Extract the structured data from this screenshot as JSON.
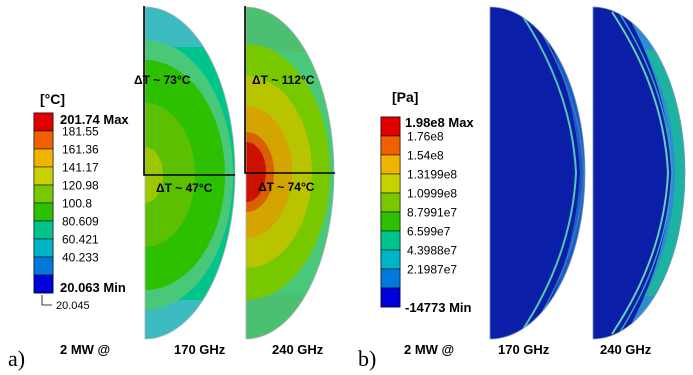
{
  "panel_a": {
    "label": "a)",
    "unit": "[°C]",
    "max_text": "201.74 Max",
    "min_text": "20.063 Min",
    "min_callout": "20.045",
    "legend_values": [
      "181.55",
      "161.36",
      "141.17",
      "120.98",
      "100.8",
      "80.609",
      "60.421",
      "40.233"
    ],
    "legend_colors": [
      "#e00000",
      "#f06000",
      "#f0b400",
      "#c8d200",
      "#78c800",
      "#2cc000",
      "#00c48c",
      "#00b4c8",
      "#0078dc",
      "#0000d8"
    ],
    "power_label": "2 MW @",
    "freq_170": "170 GHz",
    "freq_240": "240 GHz",
    "dt_170_top": "ΔT ~ 73°C",
    "dt_170_bottom": "ΔT ~ 47°C",
    "dt_240_top": "ΔT ~ 112°C",
    "dt_240_bottom": "ΔT ~ 74°C"
  },
  "panel_b": {
    "label": "b)",
    "unit": "[Pa]",
    "max_text": "1.98e8 Max",
    "min_text": "-14773 Min",
    "legend_values": [
      "1.76e8",
      "1.54e8",
      "1.3199e8",
      "1.0999e8",
      "8.7991e7",
      "6.599e7",
      "4.3988e7",
      "2.1987e7"
    ],
    "legend_colors": [
      "#e00000",
      "#f06000",
      "#f0b400",
      "#c8d200",
      "#78c800",
      "#2cc000",
      "#00c48c",
      "#00b4c8",
      "#0078dc",
      "#0000d8"
    ],
    "power_label": "2 MW @",
    "freq_170": "170 GHz",
    "freq_240": "240 GHz"
  }
}
